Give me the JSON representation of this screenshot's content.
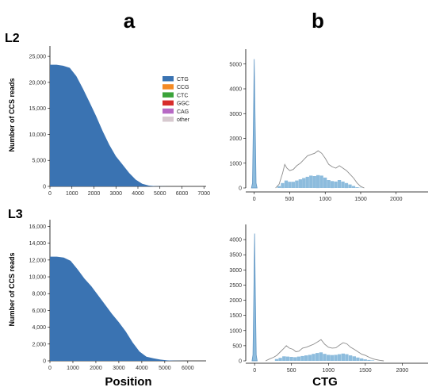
{
  "panel_letters": {
    "a": "a",
    "b": "b"
  },
  "row_labels": {
    "top": "L2",
    "bottom": "L3"
  },
  "bottom_axis_titles": {
    "left": "Position",
    "right": "CTG"
  },
  "left_ylabel": "Number of CCS reads",
  "legend": [
    {
      "label": "CTG",
      "color": "#3a73b2"
    },
    {
      "label": "CCG",
      "color": "#f48a24"
    },
    {
      "label": "CTC",
      "color": "#3ba33a"
    },
    {
      "label": "GGC",
      "color": "#d72c2c"
    },
    {
      "label": "CAG",
      "color": "#b769c4"
    },
    {
      "label": "other",
      "color": "#d7c9cf"
    }
  ],
  "colors": {
    "area_fill": "#3a73b2",
    "hist_fill": "#8dbcdd",
    "hist_line": "#8c8c8c"
  },
  "chart_data": [
    {
      "type": "area",
      "panel": "a-L2",
      "series": [
        {
          "name": "CTG"
        }
      ],
      "x": [
        0,
        300,
        600,
        900,
        1200,
        1500,
        1800,
        2100,
        2400,
        2700,
        3000,
        3300,
        3600,
        3900,
        4200,
        4500,
        4800,
        5100,
        5400,
        5700,
        6000,
        6300,
        6600,
        6900,
        7000
      ],
      "y": [
        23400,
        23400,
        23200,
        22800,
        21200,
        18800,
        16200,
        13500,
        10600,
        8000,
        5800,
        4200,
        2600,
        1300,
        500,
        150,
        40,
        10,
        0,
        0,
        0,
        0,
        0,
        0,
        0
      ],
      "xticks": [
        0,
        1000,
        2000,
        3000,
        4000,
        5000,
        6000,
        7000
      ],
      "yticks": [
        0,
        5000,
        10000,
        15000,
        20000,
        25000
      ],
      "xlim": [
        0,
        7100
      ],
      "ylim": [
        0,
        27000
      ]
    },
    {
      "type": "area",
      "panel": "a-L3",
      "series": [
        {
          "name": "CTG"
        }
      ],
      "x": [
        0,
        300,
        600,
        900,
        1200,
        1500,
        1800,
        2100,
        2400,
        2700,
        3000,
        3300,
        3600,
        3900,
        4200,
        4500,
        4800,
        5100,
        5400,
        5700,
        6000,
        6200
      ],
      "y": [
        12400,
        12400,
        12300,
        11900,
        10900,
        9800,
        8900,
        7800,
        6700,
        5600,
        4600,
        3500,
        2200,
        1100,
        500,
        300,
        150,
        60,
        20,
        5,
        0,
        0
      ],
      "xticks": [
        0,
        1000,
        2000,
        3000,
        4000,
        5000,
        6000
      ],
      "yticks": [
        0,
        2000,
        4000,
        6000,
        8000,
        10000,
        12000,
        14000,
        16000
      ],
      "xlim": [
        0,
        6800
      ],
      "ylim": [
        0,
        16800
      ]
    },
    {
      "type": "bar",
      "panel": "b-L2",
      "peak": {
        "x": [
          -40,
          -25,
          -12,
          0,
          12,
          25,
          40
        ],
        "y": [
          0,
          200,
          2800,
          5200,
          2800,
          200,
          0
        ]
      },
      "outline": {
        "x": [
          300,
          350,
          400,
          430,
          460,
          500,
          550,
          600,
          650,
          700,
          750,
          800,
          850,
          900,
          950,
          1000,
          1050,
          1100,
          1150,
          1200,
          1250,
          1300,
          1350,
          1400,
          1450,
          1500,
          1550
        ],
        "y": [
          0,
          150,
          600,
          950,
          800,
          700,
          750,
          900,
          1000,
          1150,
          1300,
          1350,
          1400,
          1500,
          1400,
          1200,
          950,
          850,
          800,
          900,
          800,
          700,
          550,
          400,
          200,
          60,
          0
        ]
      },
      "bars": {
        "x": [
          350,
          400,
          450,
          500,
          550,
          600,
          650,
          700,
          750,
          800,
          850,
          900,
          950,
          1000,
          1050,
          1100,
          1150,
          1200,
          1250,
          1300,
          1350,
          1400,
          1450,
          1500
        ],
        "y": [
          80,
          200,
          300,
          250,
          250,
          300,
          350,
          400,
          450,
          500,
          480,
          520,
          500,
          420,
          320,
          280,
          260,
          320,
          260,
          200,
          140,
          80,
          30,
          10
        ]
      },
      "xticks": [
        0,
        500,
        1000,
        1500,
        2000
      ],
      "yticks": [
        0,
        1000,
        2000,
        3000,
        4000,
        5000
      ],
      "xlim": [
        -120,
        2450
      ],
      "ylim": [
        0,
        5600
      ]
    },
    {
      "type": "bar",
      "panel": "b-L3",
      "peak": {
        "x": [
          -35,
          -22,
          -10,
          0,
          10,
          22,
          35
        ],
        "y": [
          0,
          200,
          2200,
          4200,
          2200,
          200,
          0
        ]
      },
      "outline": {
        "x": [
          150,
          200,
          260,
          300,
          350,
          400,
          430,
          470,
          520,
          560,
          600,
          650,
          700,
          750,
          800,
          850,
          900,
          950,
          1000,
          1050,
          1100,
          1150,
          1200,
          1250,
          1300,
          1350,
          1400,
          1450,
          1500,
          1550,
          1600,
          1650,
          1700,
          1750
        ],
        "y": [
          0,
          60,
          120,
          180,
          300,
          420,
          500,
          420,
          380,
          300,
          320,
          420,
          450,
          500,
          550,
          620,
          700,
          550,
          450,
          420,
          430,
          520,
          600,
          560,
          450,
          380,
          300,
          220,
          180,
          120,
          70,
          40,
          15,
          0
        ]
      },
      "bars": {
        "x": [
          300,
          350,
          400,
          450,
          500,
          550,
          600,
          650,
          700,
          750,
          800,
          850,
          900,
          950,
          1000,
          1050,
          1100,
          1150,
          1200,
          1250,
          1300,
          1350,
          1400,
          1450,
          1500,
          1550,
          1600
        ],
        "y": [
          60,
          100,
          150,
          140,
          130,
          120,
          140,
          160,
          180,
          200,
          230,
          260,
          280,
          230,
          200,
          190,
          200,
          220,
          240,
          220,
          180,
          150,
          110,
          80,
          50,
          30,
          15
        ]
      },
      "xticks": [
        0,
        500,
        1000,
        1500,
        2000
      ],
      "yticks": [
        0,
        500,
        1000,
        1500,
        2000,
        2500,
        3000,
        3500,
        4000
      ],
      "xlim": [
        -120,
        2350
      ],
      "ylim": [
        0,
        4500
      ]
    }
  ]
}
